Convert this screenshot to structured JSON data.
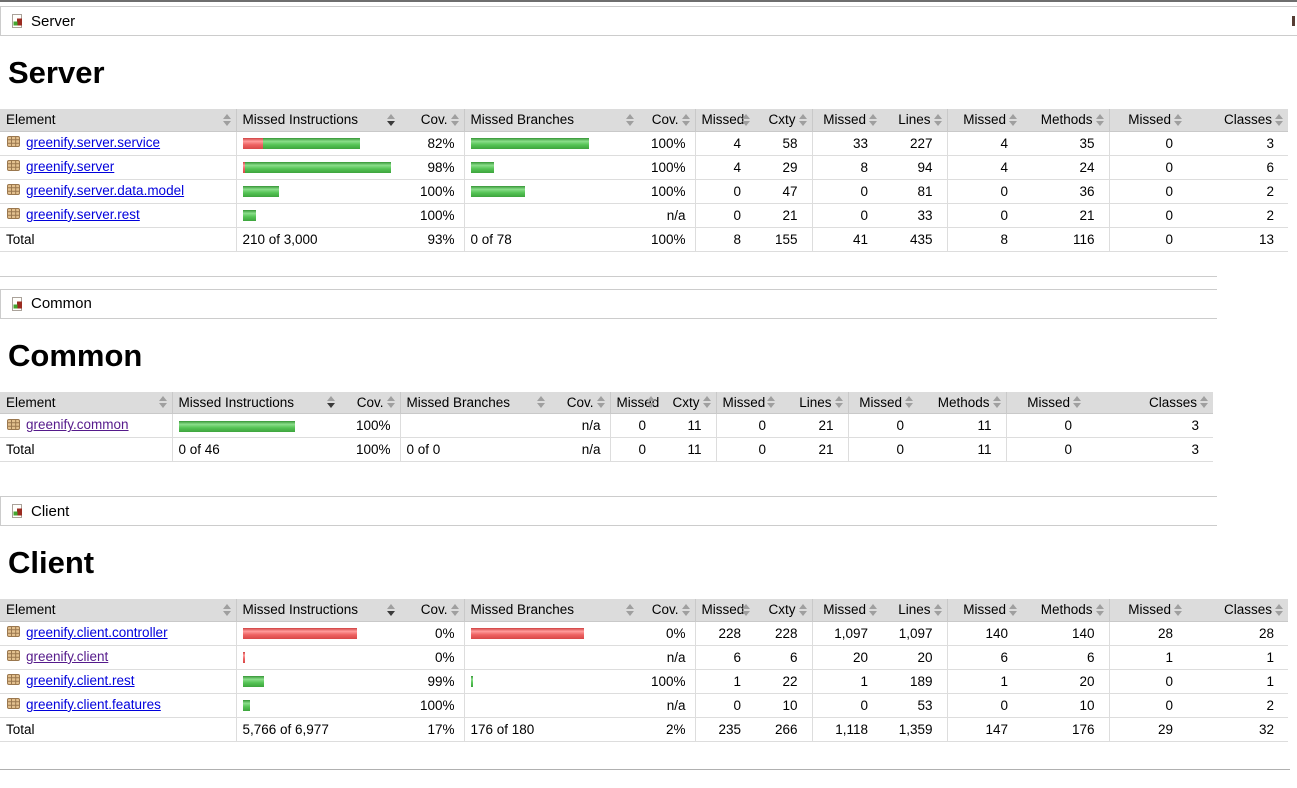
{
  "colors": {
    "link": "#0000dc",
    "link_visited": "#551a8b",
    "bar_green": "#4cbf4c",
    "bar_red": "#ee5d5d",
    "header_bg": "#dcdcdc"
  },
  "icons": {
    "breadcrumb": "report-group-icon",
    "package": "package-icon",
    "sort": "sort-updown-icon"
  },
  "sections": [
    {
      "breadcrumb": "Server",
      "heading": "Server",
      "table": {
        "sorted_column_index": 1,
        "sort_direction": "desc",
        "columns": [
          "Element",
          "Missed Instructions",
          "Cov.",
          "Missed Branches",
          "Cov.",
          "Missed",
          "Cxty",
          "Missed",
          "Lines",
          "Missed",
          "Methods",
          "Missed",
          "Classes"
        ],
        "rows": [
          {
            "name": "greenify.server.service",
            "visited": false,
            "ibar": {
              "red": 20,
              "green": 97
            },
            "icov": "82%",
            "bbar": {
              "red": 0,
              "green": 118
            },
            "bcov": "100%",
            "nums": [
              "4",
              "58",
              "33",
              "227",
              "4",
              "35",
              "0",
              "3"
            ]
          },
          {
            "name": "greenify.server",
            "visited": false,
            "ibar": {
              "red": 2,
              "green": 146
            },
            "icov": "98%",
            "bbar": {
              "red": 0,
              "green": 23
            },
            "bcov": "100%",
            "nums": [
              "4",
              "29",
              "8",
              "94",
              "4",
              "24",
              "0",
              "6"
            ]
          },
          {
            "name": "greenify.server.data.model",
            "visited": false,
            "ibar": {
              "red": 0,
              "green": 36
            },
            "icov": "100%",
            "bbar": {
              "red": 0,
              "green": 54
            },
            "bcov": "100%",
            "nums": [
              "0",
              "47",
              "0",
              "81",
              "0",
              "36",
              "0",
              "2"
            ]
          },
          {
            "name": "greenify.server.rest",
            "visited": false,
            "ibar": {
              "red": 0,
              "green": 13
            },
            "icov": "100%",
            "bbar": null,
            "bcov": "n/a",
            "nums": [
              "0",
              "21",
              "0",
              "33",
              "0",
              "21",
              "0",
              "2"
            ]
          }
        ],
        "total": {
          "label": "Total",
          "instr": "210 of 3,000",
          "icov": "93%",
          "branch": "0 of 78",
          "bcov": "100%",
          "nums": [
            "8",
            "155",
            "41",
            "435",
            "8",
            "116",
            "0",
            "13"
          ]
        }
      }
    },
    {
      "breadcrumb": "Common",
      "heading": "Common",
      "table": {
        "sorted_column_index": 1,
        "sort_direction": "desc",
        "columns": [
          "Element",
          "Missed Instructions",
          "Cov.",
          "Missed Branches",
          "Cov.",
          "Missed",
          "Cxty",
          "Missed",
          "Lines",
          "Missed",
          "Methods",
          "Missed",
          "Classes"
        ],
        "rows": [
          {
            "name": "greenify.common",
            "visited": true,
            "ibar": {
              "red": 0,
              "green": 116
            },
            "icov": "100%",
            "bbar": null,
            "bcov": "n/a",
            "nums": [
              "0",
              "11",
              "0",
              "21",
              "0",
              "11",
              "0",
              "3"
            ]
          }
        ],
        "total": {
          "label": "Total",
          "instr": "0 of 46",
          "icov": "100%",
          "branch": "0 of 0",
          "bcov": "n/a",
          "nums": [
            "0",
            "11",
            "0",
            "21",
            "0",
            "11",
            "0",
            "3"
          ]
        }
      }
    },
    {
      "breadcrumb": "Client",
      "heading": "Client",
      "table": {
        "sorted_column_index": 1,
        "sort_direction": "desc",
        "columns": [
          "Element",
          "Missed Instructions",
          "Cov.",
          "Missed Branches",
          "Cov.",
          "Missed",
          "Cxty",
          "Missed",
          "Lines",
          "Missed",
          "Methods",
          "Missed",
          "Classes"
        ],
        "rows": [
          {
            "name": "greenify.client.controller",
            "visited": false,
            "ibar": {
              "red": 114,
              "green": 0
            },
            "icov": "0%",
            "bbar": {
              "red": 113,
              "green": 0
            },
            "bcov": "0%",
            "nums": [
              "228",
              "228",
              "1,097",
              "1,097",
              "140",
              "140",
              "28",
              "28"
            ]
          },
          {
            "name": "greenify.client",
            "visited": true,
            "ibar": {
              "red": 2,
              "green": 0
            },
            "icov": "0%",
            "bbar": null,
            "bcov": "n/a",
            "nums": [
              "6",
              "6",
              "20",
              "20",
              "6",
              "6",
              "1",
              "1"
            ]
          },
          {
            "name": "greenify.client.rest",
            "visited": false,
            "ibar": {
              "red": 0,
              "green": 21
            },
            "icov": "99%",
            "bbar": {
              "red": 0,
              "green": 2
            },
            "bcov": "100%",
            "nums": [
              "1",
              "22",
              "1",
              "189",
              "1",
              "20",
              "0",
              "1"
            ]
          },
          {
            "name": "greenify.client.features",
            "visited": false,
            "ibar": {
              "red": 0,
              "green": 7
            },
            "icov": "100%",
            "bbar": null,
            "bcov": "n/a",
            "nums": [
              "0",
              "10",
              "0",
              "53",
              "0",
              "10",
              "0",
              "2"
            ]
          }
        ],
        "total": {
          "label": "Total",
          "instr": "5,766 of 6,977",
          "icov": "17%",
          "branch": "176 of 180",
          "bcov": "2%",
          "nums": [
            "235",
            "266",
            "1,118",
            "1,359",
            "147",
            "176",
            "29",
            "32"
          ]
        }
      }
    }
  ]
}
